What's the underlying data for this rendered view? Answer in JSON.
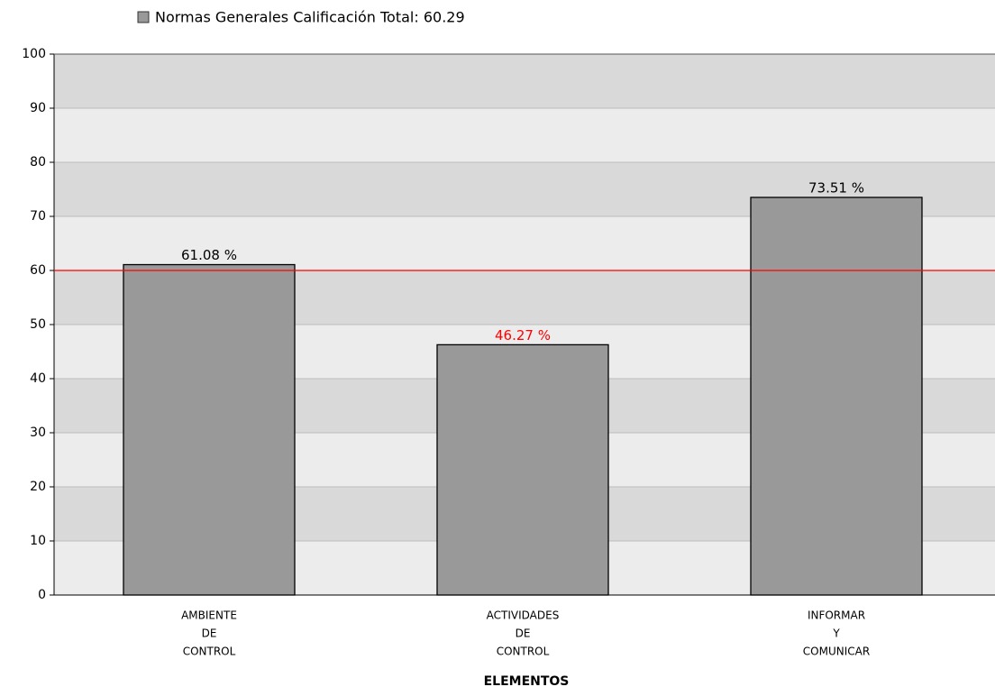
{
  "chart_data": {
    "type": "bar",
    "legend": "Normas Generales Calificación Total: 60.29",
    "categories": [
      [
        "AMBIENTE",
        "DE",
        "CONTROL"
      ],
      [
        "ACTIVIDADES",
        "DE",
        "CONTROL"
      ],
      [
        "INFORMAR",
        "Y",
        "COMUNICAR"
      ]
    ],
    "values": [
      61.08,
      46.27,
      73.51
    ],
    "value_labels": [
      "61.08 %",
      "46.27 %",
      "73.51 %"
    ],
    "color": "#999999",
    "reference_line": 60,
    "reference_color": "#ff0000",
    "xlabel": "ELEMENTOS",
    "ylim": [
      0,
      100
    ],
    "yticks": [
      0,
      10,
      20,
      30,
      40,
      50,
      60,
      70,
      80,
      90,
      100
    ],
    "grid": true
  }
}
